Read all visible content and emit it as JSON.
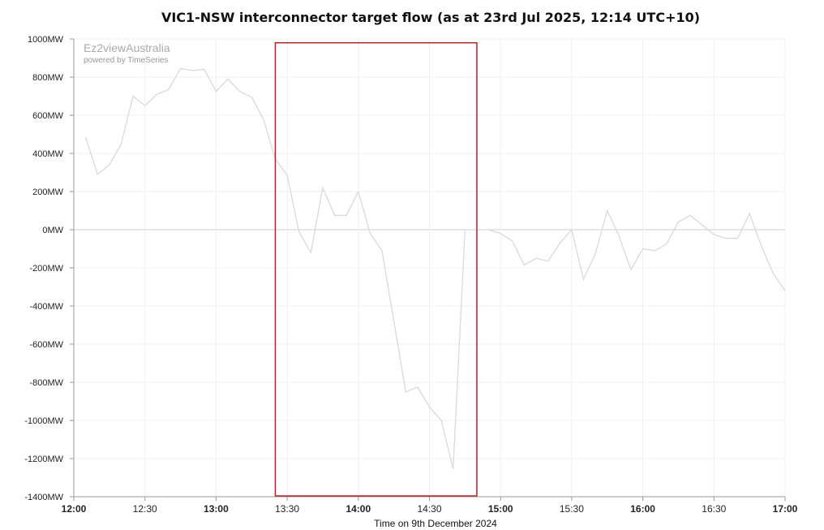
{
  "chart_data": {
    "type": "line",
    "title": "VIC1-NSW interconnector target flow (as at 23rd Jul 2025, 12:14 UTC+10)",
    "xlabel": "Time on 9th December 2024",
    "ylabel": "",
    "watermark": {
      "brand": "Ez2viewAustralia",
      "tagline": "powered by TimeSeries"
    },
    "ylim": [
      -1400,
      1000
    ],
    "xlim": [
      "12:00",
      "17:00"
    ],
    "y_ticks": [
      "1000MW",
      "800MW",
      "600MW",
      "400MW",
      "200MW",
      "0MW",
      "-200MW",
      "-400MW",
      "-600MW",
      "-800MW",
      "-1000MW",
      "-1200MW",
      "-1400MW"
    ],
    "y_tick_values": [
      1000,
      800,
      600,
      400,
      200,
      0,
      -200,
      -400,
      -600,
      -800,
      -1000,
      -1200,
      -1400
    ],
    "x_ticks": [
      {
        "label": "12:00",
        "major": true
      },
      {
        "label": "12:30",
        "major": false
      },
      {
        "label": "13:00",
        "major": true
      },
      {
        "label": "13:30",
        "major": false
      },
      {
        "label": "14:00",
        "major": true
      },
      {
        "label": "14:30",
        "major": false
      },
      {
        "label": "15:00",
        "major": true
      },
      {
        "label": "15:30",
        "major": false
      },
      {
        "label": "16:00",
        "major": true
      },
      {
        "label": "16:30",
        "major": false
      },
      {
        "label": "17:00",
        "major": true
      }
    ],
    "series": [
      {
        "color": "#d9d9d9",
        "x": [
          "12:05",
          "12:10",
          "12:15",
          "12:20",
          "12:25",
          "12:30",
          "12:35",
          "12:40",
          "12:45",
          "12:50",
          "12:55",
          "13:00",
          "13:05",
          "13:10",
          "13:15",
          "13:20",
          "13:25",
          "13:30",
          "13:35",
          "13:40",
          "13:45",
          "13:50",
          "13:55",
          "14:00",
          "14:05",
          "14:10",
          "14:15",
          "14:20",
          "14:25",
          "14:30",
          "14:35",
          "14:40",
          "14:45",
          "14:50",
          "14:55",
          "15:00",
          "15:05",
          "15:10",
          "15:15",
          "15:20",
          "15:25",
          "15:30",
          "15:35",
          "15:40",
          "15:45",
          "15:50",
          "15:55",
          "16:00",
          "16:05",
          "16:10",
          "16:15",
          "16:20",
          "16:25",
          "16:30",
          "16:35",
          "16:40",
          "16:45",
          "16:50",
          "16:55",
          "17:00"
        ],
        "values": [
          485,
          290,
          340,
          450,
          700,
          650,
          710,
          735,
          845,
          835,
          840,
          725,
          790,
          725,
          695,
          580,
          370,
          285,
          -10,
          -120,
          220,
          75,
          75,
          200,
          -20,
          -110,
          -480,
          -850,
          -825,
          -930,
          -1000,
          -1255,
          0,
          0,
          0,
          -20,
          -60,
          -185,
          -150,
          -165,
          -70,
          0,
          -260,
          -125,
          100,
          -35,
          -210,
          -100,
          -110,
          -75,
          40,
          75,
          25,
          -25,
          -45,
          -45,
          85,
          -85,
          -230,
          -320
        ]
      }
    ],
    "highlight_box": {
      "x": [
        "13:25",
        "14:50"
      ],
      "y": [
        -1400,
        980
      ],
      "color": "#b22222"
    },
    "grid": true,
    "legend": "none"
  }
}
